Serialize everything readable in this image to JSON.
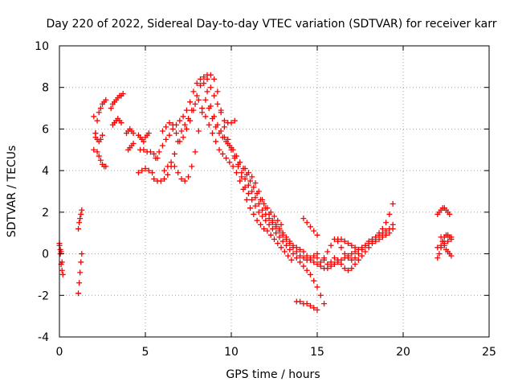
{
  "chart_data": {
    "type": "scatter",
    "title": "Day 220 of 2022, Sidereal Day-to-day VTEC variation (SDTVAR) for receiver karr",
    "xlabel": "GPS time / hours",
    "ylabel": "SDTVAR / TECUs",
    "xlim": [
      0,
      25
    ],
    "ylim": [
      -4,
      10
    ],
    "xticks": [
      0,
      5,
      10,
      15,
      20,
      25
    ],
    "yticks": [
      -4,
      -2,
      0,
      2,
      4,
      6,
      8,
      10
    ],
    "grid": true,
    "marker": "plus",
    "color": "#ff0000",
    "series": [
      {
        "x": [
          0.0,
          0.05,
          0.1,
          0.15,
          0.2
        ],
        "y": [
          0.5,
          0.0,
          -0.5,
          -0.8,
          -1.0
        ]
      },
      {
        "x": [
          0.0,
          0.05,
          0.1,
          0.15
        ],
        "y": [
          0.4,
          0.2,
          0.1,
          -0.4
        ]
      },
      {
        "x": [
          1.1,
          1.15,
          1.2,
          1.25,
          1.3
        ],
        "y": [
          1.2,
          1.5,
          1.7,
          1.9,
          2.1
        ]
      },
      {
        "x": [
          1.1,
          1.15,
          1.2,
          1.25,
          1.3
        ],
        "y": [
          -1.9,
          -1.4,
          -0.9,
          -0.4,
          0.0
        ]
      },
      {
        "x": [
          2.0,
          2.1,
          2.2,
          2.3,
          2.4,
          2.5,
          2.6,
          2.7
        ],
        "y": [
          6.6,
          5.8,
          4.9,
          4.7,
          4.5,
          4.3,
          4.2,
          4.2
        ]
      },
      {
        "x": [
          2.0,
          2.1,
          2.2,
          2.3,
          2.4,
          2.5,
          2.6,
          2.7
        ],
        "y": [
          5.0,
          5.8,
          6.4,
          6.8,
          7.0,
          7.2,
          7.3,
          7.4
        ]
      },
      {
        "x": [
          2.1,
          2.2,
          2.3,
          2.4,
          2.5
        ],
        "y": [
          5.6,
          5.5,
          5.4,
          5.5,
          5.7
        ]
      },
      {
        "x": [
          3.0,
          3.1,
          3.2,
          3.3,
          3.4,
          3.5,
          3.6,
          3.7
        ],
        "y": [
          7.0,
          7.2,
          7.3,
          7.4,
          7.5,
          7.6,
          7.6,
          7.7
        ]
      },
      {
        "x": [
          3.1,
          3.2,
          3.3,
          3.4,
          3.5,
          3.6
        ],
        "y": [
          6.2,
          6.3,
          6.4,
          6.5,
          6.4,
          6.3
        ]
      },
      {
        "x": [
          3.9,
          4.0,
          4.1,
          4.2,
          4.3
        ],
        "y": [
          5.8,
          5.9,
          6.0,
          5.9,
          5.8
        ]
      },
      {
        "x": [
          4.0,
          4.1,
          4.2,
          4.3
        ],
        "y": [
          5.0,
          5.1,
          5.2,
          5.3
        ]
      },
      {
        "x": [
          4.6,
          4.7,
          4.8,
          4.9,
          5.0,
          5.1,
          5.2
        ],
        "y": [
          5.7,
          5.6,
          5.5,
          5.4,
          5.6,
          5.7,
          5.8
        ]
      },
      {
        "x": [
          4.6,
          4.8,
          5.0,
          5.2,
          5.4
        ],
        "y": [
          3.9,
          4.0,
          4.1,
          4.0,
          3.9
        ]
      },
      {
        "x": [
          4.7,
          4.9,
          5.1,
          5.3,
          5.5,
          5.7
        ],
        "y": [
          5.0,
          5.0,
          4.9,
          4.9,
          4.8,
          4.6
        ]
      },
      {
        "x": [
          5.5,
          5.7,
          5.9,
          6.1,
          6.3,
          6.5,
          6.7,
          6.9,
          7.1,
          7.3,
          7.5,
          7.7,
          7.9,
          8.1,
          8.3,
          8.5,
          8.7,
          8.9,
          9.1,
          9.3,
          9.5,
          9.7,
          9.9,
          10.1,
          10.3,
          10.5,
          10.7,
          10.9,
          11.1,
          11.3,
          11.5,
          11.7,
          11.9,
          12.1,
          12.3,
          12.5,
          12.7,
          12.9,
          13.1,
          13.3,
          13.5
        ],
        "y": [
          3.6,
          3.5,
          3.5,
          3.6,
          3.8,
          4.2,
          4.8,
          5.4,
          5.9,
          6.2,
          6.5,
          6.9,
          7.2,
          7.4,
          7.0,
          6.6,
          6.2,
          5.8,
          5.4,
          5.0,
          4.8,
          4.6,
          4.4,
          4.2,
          3.9,
          3.5,
          3.1,
          2.6,
          2.2,
          1.9,
          1.6,
          1.4,
          1.2,
          1.1,
          0.9,
          0.7,
          0.5,
          0.3,
          0.1,
          -0.1,
          -0.3
        ]
      },
      {
        "x": [
          5.6,
          5.8,
          6.0,
          6.2,
          6.4,
          6.6,
          6.8,
          7.0,
          7.2,
          7.4,
          7.6,
          7.8,
          8.0,
          8.2,
          8.4,
          8.6,
          8.8,
          9.0,
          9.2,
          9.4,
          9.6,
          9.8,
          10.0,
          10.2,
          10.4,
          10.6,
          10.8,
          11.0,
          11.2,
          11.4,
          11.6,
          11.8,
          12.0,
          12.2,
          12.4,
          12.6,
          12.8,
          13.0,
          13.2,
          13.4,
          13.6,
          13.8,
          14.0,
          14.2,
          14.4,
          14.6,
          14.8,
          15.0
        ],
        "y": [
          4.6,
          4.9,
          5.2,
          5.5,
          5.7,
          6.0,
          6.2,
          6.4,
          6.6,
          6.9,
          7.3,
          7.8,
          8.2,
          8.4,
          8.5,
          8.6,
          8.6,
          8.4,
          7.8,
          6.9,
          6.1,
          5.5,
          5.1,
          4.7,
          4.3,
          3.9,
          3.6,
          3.3,
          3.0,
          2.7,
          2.4,
          2.1,
          1.9,
          1.7,
          1.5,
          1.3,
          1.1,
          0.9,
          0.7,
          0.5,
          0.3,
          0.1,
          -0.1,
          -0.2,
          -0.3,
          -0.2,
          -0.1,
          0.0
        ]
      },
      {
        "x": [
          6.0,
          6.2,
          6.4,
          6.6,
          6.8,
          7.0,
          7.2,
          7.4,
          7.6,
          7.8,
          8.0,
          8.2,
          8.4,
          8.6,
          8.8,
          9.0,
          9.2,
          9.4,
          9.6,
          9.8,
          10.0,
          10.2,
          10.4,
          10.6,
          10.8,
          11.0,
          11.2,
          11.4,
          11.6,
          11.8,
          12.0,
          12.2,
          12.4,
          12.6,
          12.8,
          13.0,
          13.2,
          13.4,
          13.6,
          13.8,
          14.0,
          14.2,
          14.4,
          14.6,
          14.8,
          15.0,
          15.2,
          15.4
        ],
        "y": [
          5.9,
          6.1,
          6.3,
          6.2,
          5.8,
          5.4,
          5.6,
          6.0,
          6.4,
          6.9,
          7.6,
          8.1,
          8.2,
          7.8,
          7.1,
          6.6,
          6.2,
          5.9,
          5.6,
          5.3,
          5.0,
          4.6,
          4.2,
          3.7,
          3.2,
          2.9,
          2.6,
          2.3,
          2.0,
          1.8,
          1.6,
          1.4,
          1.2,
          1.0,
          0.8,
          0.6,
          0.4,
          0.2,
          0.0,
          -0.2,
          -0.4,
          -0.6,
          -0.8,
          -1.0,
          -1.3,
          -1.6,
          -2.0,
          -2.4
        ]
      },
      {
        "x": [
          6.1,
          6.3,
          6.5,
          6.7,
          6.9,
          7.1,
          7.3,
          7.5,
          7.7,
          7.9,
          8.1,
          8.3,
          8.5,
          8.7,
          8.9,
          9.1,
          9.3,
          9.5,
          9.7,
          9.9,
          10.1,
          10.3,
          10.5,
          10.7,
          10.9,
          11.1,
          11.3,
          11.5,
          11.7,
          11.9,
          12.1,
          12.3,
          12.5,
          12.7,
          12.9
        ],
        "y": [
          4.0,
          4.2,
          4.4,
          4.2,
          3.9,
          3.6,
          3.5,
          3.7,
          4.2,
          4.9,
          5.9,
          6.8,
          7.4,
          7.0,
          6.5,
          6.1,
          5.8,
          5.6,
          5.4,
          5.2,
          5.0,
          4.7,
          4.4,
          4.1,
          3.8,
          3.5,
          3.2,
          2.9,
          2.6,
          2.4,
          2.2,
          2.0,
          1.8,
          1.6,
          1.4
        ]
      },
      {
        "x": [
          8.6,
          8.8,
          9.0,
          9.2,
          9.4,
          9.6,
          9.8,
          10.0,
          10.2
        ],
        "y": [
          8.4,
          8.0,
          7.6,
          7.2,
          6.8,
          6.4,
          6.3,
          6.3,
          6.4
        ]
      },
      {
        "x": [
          10.8,
          11.0,
          11.2,
          11.4,
          11.6,
          11.8,
          12.0,
          12.2,
          12.4,
          12.6,
          12.8,
          13.0,
          13.2,
          13.4,
          13.6,
          13.8,
          14.0,
          14.2,
          14.4,
          14.6,
          14.8,
          15.0,
          15.2,
          15.4,
          15.6,
          15.8,
          16.0,
          16.2,
          16.4,
          16.6,
          16.8,
          17.0,
          17.2,
          17.4,
          17.6,
          17.8,
          18.0,
          18.2,
          18.4,
          18.6,
          18.8,
          19.0,
          19.2,
          19.4
        ],
        "y": [
          4.1,
          3.9,
          3.7,
          3.4,
          3.0,
          2.6,
          2.2,
          1.9,
          1.6,
          1.4,
          1.2,
          1.0,
          0.8,
          0.6,
          0.4,
          0.3,
          0.2,
          0.1,
          -0.1,
          -0.3,
          -0.4,
          -0.5,
          -0.6,
          -0.7,
          -0.7,
          -0.6,
          -0.5,
          -0.4,
          -0.3,
          -0.2,
          -0.1,
          0.0,
          0.1,
          0.2,
          0.3,
          0.4,
          0.5,
          0.6,
          0.8,
          1.0,
          1.2,
          1.5,
          1.9,
          2.4
        ]
      },
      {
        "x": [
          15.0,
          15.2,
          15.4,
          15.6,
          15.8,
          16.0,
          16.2,
          16.4,
          16.6,
          16.8,
          17.0,
          17.2,
          17.4,
          17.6,
          17.8,
          18.0,
          18.2,
          18.4,
          18.6,
          18.8,
          19.0,
          19.2,
          19.4
        ],
        "y": [
          -0.2,
          -0.4,
          -0.2,
          0.1,
          0.4,
          0.7,
          0.6,
          0.3,
          0.0,
          -0.2,
          -0.3,
          -0.2,
          0.0,
          0.2,
          0.4,
          0.6,
          0.7,
          0.8,
          0.9,
          1.0,
          1.1,
          1.2,
          1.4
        ]
      },
      {
        "x": [
          15.4,
          15.6,
          15.8,
          16.0,
          16.2,
          16.4,
          16.6,
          16.8,
          17.0,
          17.2,
          17.4,
          17.6,
          17.8,
          18.0,
          18.2,
          18.4,
          18.6,
          18.8,
          19.0,
          19.2,
          19.4
        ],
        "y": [
          -0.3,
          -0.5,
          -0.4,
          -0.2,
          -0.3,
          -0.5,
          -0.7,
          -0.8,
          -0.7,
          -0.5,
          -0.3,
          -0.1,
          0.1,
          0.3,
          0.5,
          0.6,
          0.7,
          0.8,
          0.9,
          1.0,
          1.2
        ]
      },
      {
        "x": [
          13.8,
          14.0,
          14.2,
          14.4,
          14.6,
          14.8,
          15.0
        ],
        "y": [
          -2.3,
          -2.3,
          -2.4,
          -2.4,
          -2.5,
          -2.6,
          -2.7
        ]
      },
      {
        "x": [
          14.2,
          14.4,
          14.6,
          14.8,
          15.0
        ],
        "y": [
          1.7,
          1.5,
          1.3,
          1.1,
          0.9
        ]
      },
      {
        "x": [
          16.2,
          16.4,
          16.6,
          16.8,
          17.0,
          17.2
        ],
        "y": [
          0.7,
          0.7,
          0.6,
          0.5,
          0.4,
          0.3
        ]
      },
      {
        "x": [
          22.0,
          22.1,
          22.2,
          22.3,
          22.4,
          22.5,
          22.6,
          22.7
        ],
        "y": [
          1.9,
          2.0,
          2.1,
          2.2,
          2.2,
          2.1,
          2.0,
          1.9
        ]
      },
      {
        "x": [
          22.0,
          22.1,
          22.2,
          22.3,
          22.4,
          22.5,
          22.6,
          22.7,
          22.8
        ],
        "y": [
          -0.2,
          0.0,
          0.3,
          0.6,
          0.8,
          0.9,
          0.9,
          0.8,
          0.8
        ]
      },
      {
        "x": [
          22.2,
          22.3,
          22.4,
          22.5,
          22.6,
          22.7,
          22.8
        ],
        "y": [
          0.8,
          0.6,
          0.4,
          0.2,
          0.1,
          0.0,
          -0.1
        ]
      },
      {
        "x": [
          22.0,
          22.2,
          22.4,
          22.6,
          22.8
        ],
        "y": [
          0.3,
          0.4,
          0.5,
          0.6,
          0.7
        ]
      }
    ]
  }
}
